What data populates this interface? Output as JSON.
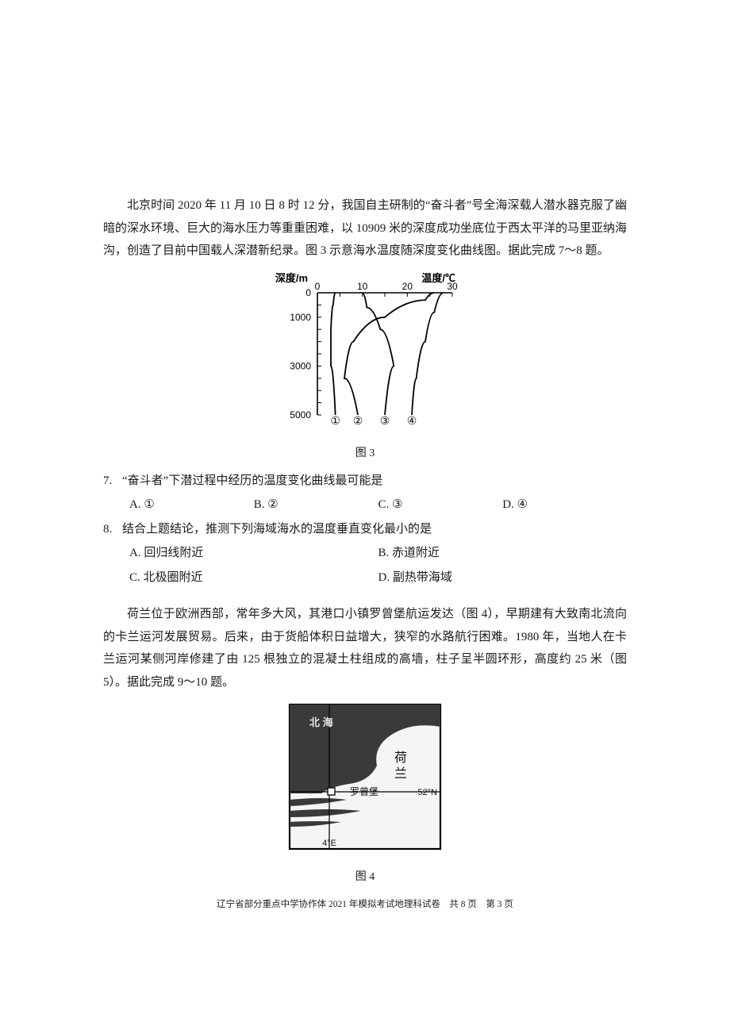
{
  "passage1": "北京时间 2020 年 11 月 10 日 8 时 12 分，我国自主研制的“奋斗者”号全海深载人潜水器克服了幽暗的深水环境、巨大的海水压力等重重困难，以 10909 米的深度成功坐底位于西太平洋的马里亚纳海沟，创造了目前中国载人深潜新纪录。图 3 示意海水温度随深度变化曲线图。据此完成 7～8 题。",
  "fig3": {
    "caption": "图 3",
    "y_label": "深度/m",
    "x_label": "温度/℃",
    "x_ticks": [
      "0",
      "10",
      "20",
      "30"
    ],
    "y_ticks": [
      "0",
      "1000",
      "3000",
      "5000"
    ],
    "curve_labels": [
      "①",
      "②",
      "③",
      "④"
    ],
    "axis_color": "#000000",
    "line_color": "#000000",
    "label_fontsize": 13,
    "tick_fontsize": 12,
    "curves": {
      "c1": [
        [
          4,
          0
        ],
        [
          3.5,
          500
        ],
        [
          3,
          1500
        ],
        [
          3,
          3000
        ],
        [
          4,
          5000
        ]
      ],
      "c2": [
        [
          26,
          0
        ],
        [
          24,
          300
        ],
        [
          15,
          1000
        ],
        [
          8,
          2000
        ],
        [
          6,
          3500
        ],
        [
          9,
          5000
        ]
      ],
      "c3": [
        [
          10,
          0
        ],
        [
          11,
          600
        ],
        [
          14,
          1500
        ],
        [
          17,
          3000
        ],
        [
          15,
          5000
        ]
      ],
      "c4": [
        [
          28,
          0
        ],
        [
          26,
          800
        ],
        [
          24,
          2000
        ],
        [
          22,
          3500
        ],
        [
          21,
          5000
        ]
      ]
    }
  },
  "q7": {
    "num": "7.",
    "stem": "“奋斗者”下潜过程中经历的温度变化曲线最可能是",
    "opts": [
      "A. ①",
      "B. ②",
      "C. ③",
      "D. ④"
    ]
  },
  "q8": {
    "num": "8.",
    "stem": "结合上题结论，推测下列海域海水的温度垂直变化最小的是",
    "opts": [
      "A. 回归线附近",
      "B. 赤道附近",
      "C. 北极圈附近",
      "D. 副热带海域"
    ]
  },
  "passage2": "荷兰位于欧洲西部，常年多大风，其港口小镇罗曾堡航运发达（图 4），早期建有大致南北流向的卡兰运河发展贸易。后来，由于货船体积日益增大，狭窄的水路航行困难。1980 年，当地人在卡兰运河某侧河岸修建了由 125 根独立的混凝土柱组成的高墙，柱子呈半圆环形，高度约 25 米（图 5）。据此完成 9～10 题。",
  "fig4": {
    "caption": "图 4",
    "labels": {
      "sea": "北  海",
      "country": "荷\n兰",
      "town": "罗曾堡",
      "lat": "52°N",
      "lon": "4°E"
    },
    "colors": {
      "sea": "#3a3a3a",
      "land": "#f5f5f5",
      "border": "#000000"
    }
  },
  "footer": "辽宁省部分重点中学协作体 2021 年模拟考试地理科试卷　共 8 页　第 3 页"
}
